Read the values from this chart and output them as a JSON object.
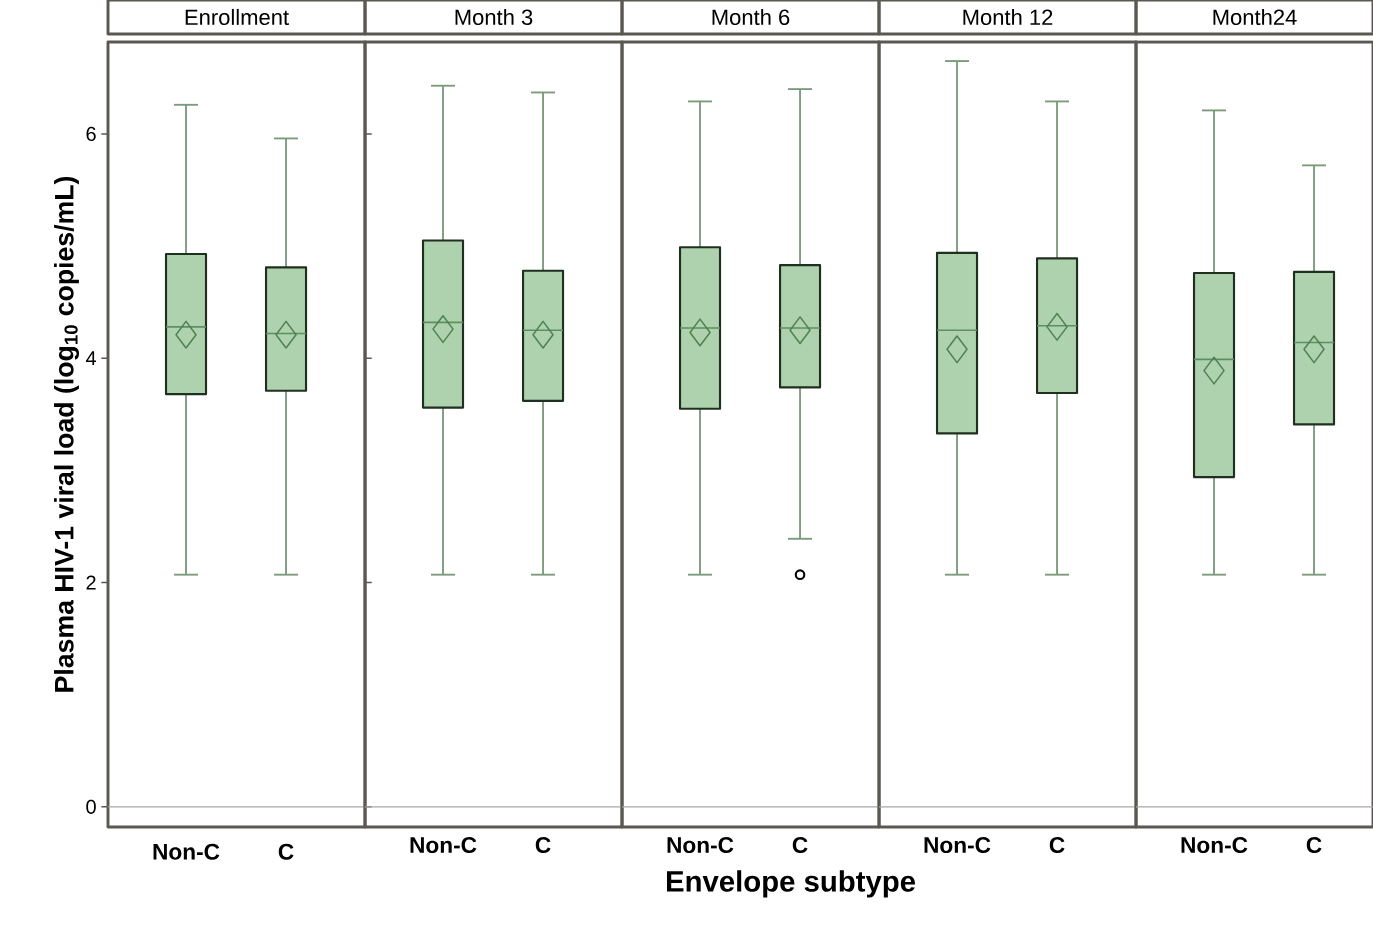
{
  "chart_data": [
    {
      "type": "box",
      "title": "Enrollment",
      "ylabel": "Plasma HIV-1 viral load (log$_{10}$ copies/mL)",
      "categories": [
        "Non-C",
        "C"
      ],
      "ylim": [
        -0.18,
        6.82
      ],
      "yticks": [
        0,
        2,
        4,
        6
      ],
      "ref_lines": [
        {
          "axis": "y",
          "value": 0,
          "color": "#a8a8a8"
        }
      ],
      "series": [
        {
          "color": "#aed1ae",
          "boxes": [
            {
              "low": 2.07,
              "q1": 3.68,
              "median": 4.28,
              "q3": 4.93,
              "high": 6.26,
              "mean": 4.21
            },
            {
              "low": 2.07,
              "q1": 3.71,
              "median": 4.22,
              "q3": 4.81,
              "high": 5.96,
              "mean": 4.21
            }
          ]
        }
      ]
    },
    {
      "type": "box",
      "title": "Month 3",
      "categories": [
        "Non-C",
        "C"
      ],
      "ylim": [
        -0.18,
        6.82
      ],
      "yticks": [
        0,
        2,
        4,
        6
      ],
      "tick_labels": "x",
      "ref_lines": [
        {
          "axis": "y",
          "value": 0,
          "color": "#a8a8a8"
        }
      ],
      "series": [
        {
          "color": "#aed1ae",
          "boxes": [
            {
              "low": 2.07,
              "q1": 3.56,
              "median": 4.32,
              "q3": 5.05,
              "high": 6.43,
              "mean": 4.26
            },
            {
              "low": 2.07,
              "q1": 3.62,
              "median": 4.25,
              "q3": 4.78,
              "high": 6.37,
              "mean": 4.21
            }
          ]
        }
      ]
    },
    {
      "type": "box",
      "title": "Month 6",
      "xlabel": "Envelope subtype",
      "categories": [
        "Non-C",
        "C"
      ],
      "ylim": [
        -0.18,
        6.82
      ],
      "yticks": [
        0,
        2,
        4,
        6
      ],
      "tick_labels": "x",
      "ref_lines": [
        {
          "axis": "y",
          "value": 0,
          "color": "#a8a8a8"
        }
      ],
      "series": [
        {
          "color": "#aed1ae",
          "boxes": [
            {
              "low": 2.07,
              "q1": 3.55,
              "median": 4.27,
              "q3": 4.99,
              "high": 6.29,
              "mean": 4.23
            },
            {
              "low": 2.39,
              "q1": 3.74,
              "median": 4.27,
              "q3": 4.83,
              "high": 6.4,
              "mean": 4.25,
              "outliers": [
                2.07
              ]
            }
          ]
        }
      ]
    },
    {
      "type": "box",
      "title": "Month 12",
      "categories": [
        "Non-C",
        "C"
      ],
      "ylim": [
        -0.18,
        6.82
      ],
      "yticks": [
        0,
        2,
        4,
        6
      ],
      "tick_labels": "x",
      "ref_lines": [
        {
          "axis": "y",
          "value": 0,
          "color": "#a8a8a8"
        }
      ],
      "series": [
        {
          "color": "#aed1ae",
          "boxes": [
            {
              "low": 2.07,
              "q1": 3.33,
              "median": 4.25,
              "q3": 4.94,
              "high": 6.65,
              "mean": 4.08
            },
            {
              "low": 2.07,
              "q1": 3.69,
              "median": 4.29,
              "q3": 4.89,
              "high": 6.29,
              "mean": 4.28
            }
          ]
        }
      ]
    },
    {
      "type": "box",
      "title": "Month24",
      "categories": [
        "Non-C",
        "C"
      ],
      "ylim": [
        -0.18,
        6.82
      ],
      "yticks": [
        0,
        2,
        4,
        6
      ],
      "tick_labels": "x",
      "ref_lines": [
        {
          "axis": "y",
          "value": 0,
          "color": "#a8a8a8"
        }
      ],
      "series": [
        {
          "color": "#aed1ae",
          "boxes": [
            {
              "low": 2.07,
              "q1": 2.94,
              "median": 3.99,
              "q3": 4.76,
              "high": 6.21,
              "mean": 3.89
            },
            {
              "low": 2.07,
              "q1": 3.41,
              "median": 4.14,
              "q3": 4.77,
              "high": 5.72,
              "mean": 4.08
            }
          ]
        }
      ]
    }
  ]
}
